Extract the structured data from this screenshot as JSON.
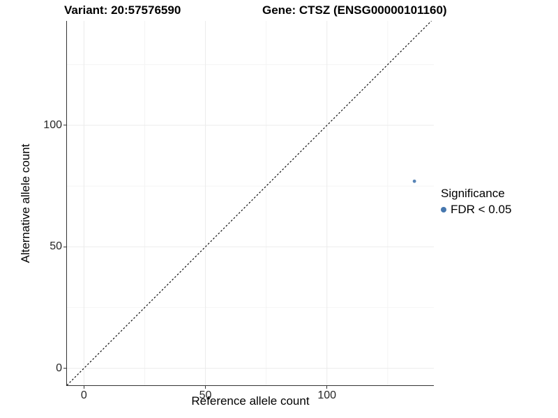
{
  "chart_data": {
    "type": "scatter",
    "title_left": "Variant: 20:57576590",
    "title_right": "Gene: CTSZ (ENSG00000101160)",
    "xlabel": "Reference allele count",
    "ylabel": "Alternative allele count",
    "xlim": [
      -7,
      144
    ],
    "ylim": [
      -7,
      143
    ],
    "x_ticks": [
      0,
      50,
      100
    ],
    "y_ticks": [
      0,
      50,
      100
    ],
    "minor_gridlines": [
      25,
      75,
      125
    ],
    "grid": true,
    "identity_line": {
      "style": "dashed",
      "from": [
        -7,
        -7
      ],
      "to": [
        143,
        143
      ]
    },
    "series": [
      {
        "name": "FDR < 0.05",
        "color": "#4677ae",
        "points": [
          {
            "x": 136,
            "y": 77
          }
        ]
      }
    ],
    "legend": {
      "position": "right",
      "title": "Significance",
      "entries": [
        {
          "label": "FDR < 0.05",
          "color": "#4677ae"
        }
      ]
    },
    "colors": {
      "axis": "#333333",
      "tick_label": "#262626",
      "grid_major": "#ebebeb",
      "grid_minor": "#f4f4f4",
      "identity_line": "#111111",
      "background": "#ffffff"
    }
  }
}
